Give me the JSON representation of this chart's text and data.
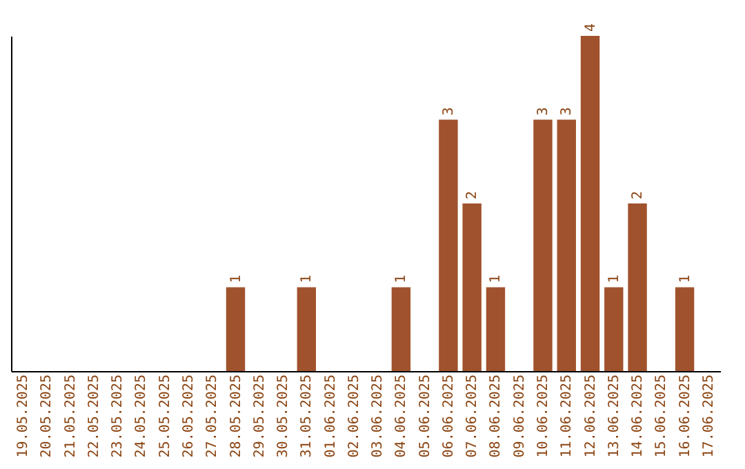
{
  "chart_data": {
    "type": "bar",
    "categories": [
      "19.05.2025",
      "20.05.2025",
      "21.05.2025",
      "22.05.2025",
      "23.05.2025",
      "24.05.2025",
      "25.05.2025",
      "26.05.2025",
      "27.05.2025",
      "28.05.2025",
      "29.05.2025",
      "30.05.2025",
      "31.05.2025",
      "01.06.2025",
      "02.06.2025",
      "03.06.2025",
      "04.06.2025",
      "05.06.2025",
      "06.06.2025",
      "07.06.2025",
      "08.06.2025",
      "09.06.2025",
      "10.06.2025",
      "11.06.2025",
      "12.06.2025",
      "13.06.2025",
      "14.06.2025",
      "15.06.2025",
      "16.06.2025",
      "17.06.2025"
    ],
    "values": [
      0,
      0,
      0,
      0,
      0,
      0,
      0,
      0,
      0,
      1,
      0,
      0,
      1,
      0,
      0,
      0,
      1,
      0,
      3,
      2,
      1,
      0,
      3,
      3,
      4,
      1,
      2,
      0,
      1,
      0
    ],
    "value_labels": [
      null,
      null,
      null,
      null,
      null,
      null,
      null,
      null,
      null,
      "1",
      null,
      null,
      "1",
      null,
      null,
      null,
      "1",
      null,
      "3",
      "2",
      "1",
      null,
      "3",
      "3",
      "4",
      "1",
      "2",
      null,
      "1",
      null
    ],
    "color": "#a0522d",
    "tick_labels": "x",
    "grid": false
  }
}
